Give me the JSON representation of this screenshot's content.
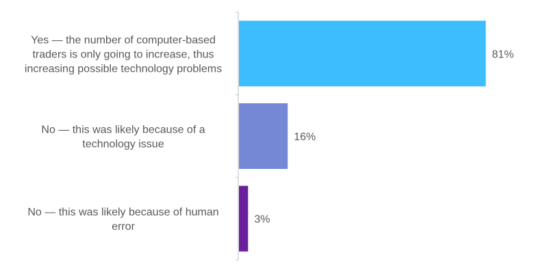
{
  "chart_data": {
    "type": "bar",
    "orientation": "horizontal",
    "title": "",
    "xlabel": "",
    "ylabel": "",
    "xlim": [
      0,
      100
    ],
    "grid": false,
    "legend": "none",
    "categories": [
      [
        "Yes — the number of computer-based",
        "traders is only going to increase, thus",
        "increasing possible technology problems"
      ],
      [
        "No — this was likely because of a",
        "technology issue"
      ],
      [
        "No — this was likely because of human",
        "error"
      ]
    ],
    "values": [
      81,
      16,
      3
    ],
    "value_labels": [
      "81%",
      "16%",
      "3%"
    ],
    "colors": [
      "#3dbdfd",
      "#7488d6",
      "#6b1f9c"
    ],
    "axis_color": "#bfbfbf"
  }
}
